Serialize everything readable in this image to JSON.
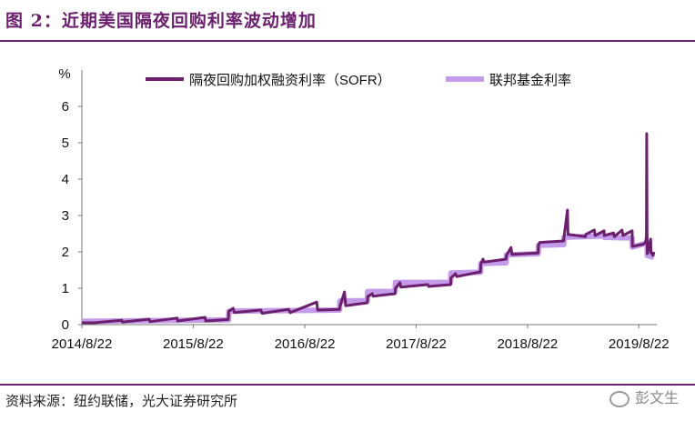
{
  "header": {
    "title": "图 2：近期美国隔夜回购利率波动增加"
  },
  "footer": {
    "source": "资料来源：纽约联储，光大证券研究所",
    "watermark": "彭文生"
  },
  "chart_data": {
    "type": "line",
    "y_unit": "%",
    "ylim": [
      0,
      6
    ],
    "yticks": [
      "0",
      "1",
      "2",
      "3",
      "4",
      "5",
      "6"
    ],
    "xticks": [
      "2014/8/22",
      "2015/8/22",
      "2016/8/22",
      "2017/8/22",
      "2018/8/22",
      "2019/8/22"
    ],
    "grid": false,
    "legend_position": "top",
    "series": [
      {
        "name": "隔夜回购加权融资利率（SOFR）",
        "color": "#6b1f6e",
        "points": [
          [
            "2014-08-22",
            0.05
          ],
          [
            "2014-10-01",
            0.05
          ],
          [
            "2014-12-31",
            0.12
          ],
          [
            "2015-01-02",
            0.07
          ],
          [
            "2015-03-31",
            0.15
          ],
          [
            "2015-04-02",
            0.08
          ],
          [
            "2015-06-30",
            0.18
          ],
          [
            "2015-07-02",
            0.1
          ],
          [
            "2015-09-30",
            0.2
          ],
          [
            "2015-10-02",
            0.1
          ],
          [
            "2015-12-15",
            0.14
          ],
          [
            "2015-12-17",
            0.37
          ],
          [
            "2015-12-31",
            0.45
          ],
          [
            "2016-01-04",
            0.33
          ],
          [
            "2016-03-31",
            0.4
          ],
          [
            "2016-04-04",
            0.31
          ],
          [
            "2016-06-30",
            0.42
          ],
          [
            "2016-07-05",
            0.33
          ],
          [
            "2016-09-30",
            0.62
          ],
          [
            "2016-10-03",
            0.4
          ],
          [
            "2016-12-14",
            0.42
          ],
          [
            "2016-12-15",
            0.5
          ],
          [
            "2016-12-30",
            0.9
          ],
          [
            "2017-01-03",
            0.52
          ],
          [
            "2017-03-15",
            0.6
          ],
          [
            "2017-03-16",
            0.77
          ],
          [
            "2017-03-31",
            0.85
          ],
          [
            "2017-04-03",
            0.78
          ],
          [
            "2017-06-14",
            0.85
          ],
          [
            "2017-06-15",
            1.0
          ],
          [
            "2017-06-30",
            1.15
          ],
          [
            "2017-07-03",
            1.03
          ],
          [
            "2017-09-29",
            1.1
          ],
          [
            "2017-10-02",
            1.05
          ],
          [
            "2017-12-13",
            1.1
          ],
          [
            "2017-12-14",
            1.28
          ],
          [
            "2017-12-29",
            1.4
          ],
          [
            "2018-01-02",
            1.32
          ],
          [
            "2018-03-21",
            1.45
          ],
          [
            "2018-03-22",
            1.67
          ],
          [
            "2018-03-29",
            1.8
          ],
          [
            "2018-04-02",
            1.72
          ],
          [
            "2018-06-13",
            1.8
          ],
          [
            "2018-06-14",
            1.9
          ],
          [
            "2018-06-29",
            2.12
          ],
          [
            "2018-07-02",
            1.93
          ],
          [
            "2018-09-26",
            1.97
          ],
          [
            "2018-09-27",
            2.18
          ],
          [
            "2018-10-01",
            2.26
          ],
          [
            "2018-12-19",
            2.3
          ],
          [
            "2018-12-20",
            2.42
          ],
          [
            "2018-12-31",
            3.15
          ],
          [
            "2019-01-02",
            2.48
          ],
          [
            "2019-02-28",
            2.42
          ],
          [
            "2019-03-01",
            2.48
          ],
          [
            "2019-03-29",
            2.6
          ],
          [
            "2019-04-01",
            2.45
          ],
          [
            "2019-04-30",
            2.58
          ],
          [
            "2019-05-01",
            2.45
          ],
          [
            "2019-05-31",
            2.52
          ],
          [
            "2019-06-03",
            2.42
          ],
          [
            "2019-06-28",
            2.6
          ],
          [
            "2019-07-01",
            2.45
          ],
          [
            "2019-07-31",
            2.58
          ],
          [
            "2019-08-01",
            2.15
          ],
          [
            "2019-08-30",
            2.2
          ],
          [
            "2019-09-03",
            2.2
          ],
          [
            "2019-09-13",
            2.25
          ],
          [
            "2019-09-16",
            2.43
          ],
          [
            "2019-09-17",
            5.25
          ],
          [
            "2019-09-18",
            2.55
          ],
          [
            "2019-09-19",
            1.95
          ],
          [
            "2019-09-30",
            2.35
          ],
          [
            "2019-10-01",
            1.98
          ],
          [
            "2019-10-08",
            1.9
          ],
          [
            "2019-10-10",
            2.0
          ]
        ]
      },
      {
        "name": "联邦基金利率",
        "color": "#c39bea",
        "points": [
          [
            "2014-08-22",
            0.09
          ],
          [
            "2015-12-16",
            0.13
          ],
          [
            "2015-12-17",
            0.37
          ],
          [
            "2016-12-14",
            0.4
          ],
          [
            "2016-12-15",
            0.65
          ],
          [
            "2017-03-15",
            0.66
          ],
          [
            "2017-03-16",
            0.91
          ],
          [
            "2017-06-14",
            0.91
          ],
          [
            "2017-06-15",
            1.16
          ],
          [
            "2017-12-13",
            1.16
          ],
          [
            "2017-12-14",
            1.42
          ],
          [
            "2018-03-21",
            1.44
          ],
          [
            "2018-03-22",
            1.68
          ],
          [
            "2018-06-13",
            1.7
          ],
          [
            "2018-06-14",
            1.92
          ],
          [
            "2018-09-26",
            1.95
          ],
          [
            "2018-09-27",
            2.18
          ],
          [
            "2018-12-19",
            2.2
          ],
          [
            "2018-12-20",
            2.4
          ],
          [
            "2019-04-30",
            2.44
          ],
          [
            "2019-05-01",
            2.4
          ],
          [
            "2019-07-31",
            2.38
          ],
          [
            "2019-08-01",
            2.13
          ],
          [
            "2019-09-18",
            2.25
          ],
          [
            "2019-09-19",
            1.9
          ],
          [
            "2019-10-10",
            1.85
          ]
        ]
      }
    ]
  }
}
